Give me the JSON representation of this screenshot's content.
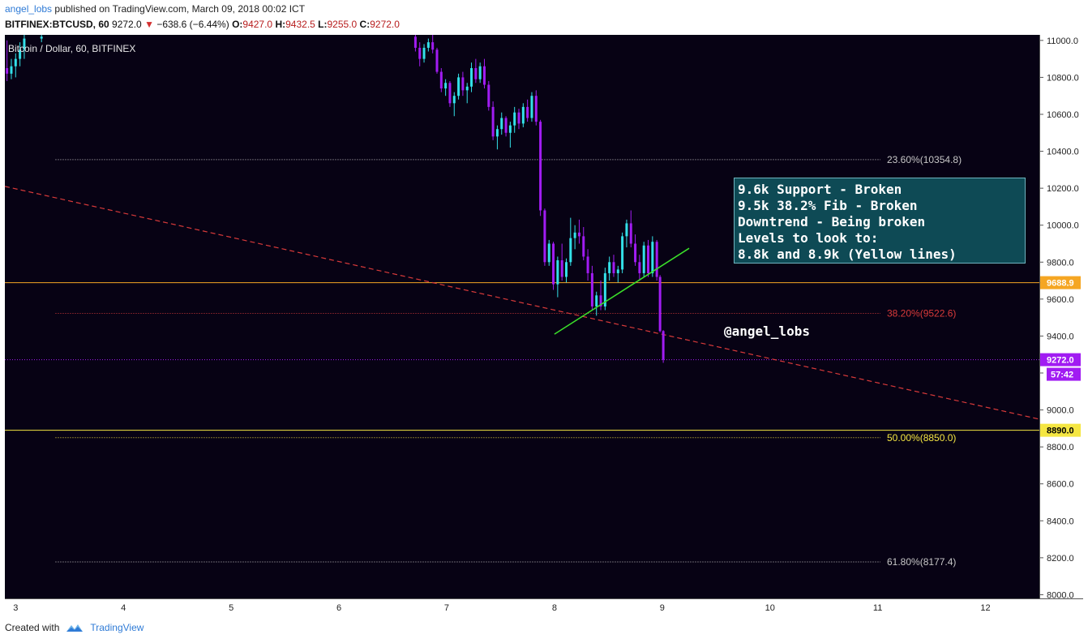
{
  "header": {
    "user": "angel_lobs",
    "published": "published on TradingView.com, March 09, 2018 00:02 ICT",
    "symbol": "BITFINEX:BTCUSD, 60",
    "last": "9272.0",
    "change": "−638.6 (−6.44%)",
    "o_label": "O:",
    "o": "9427.0",
    "h_label": "H:",
    "h": "9432.5",
    "l_label": "L:",
    "l": "9255.0",
    "c_label": "C:",
    "c": "9272.0"
  },
  "series_title": "Bitcoin / Dollar, 60, BITFINEX",
  "annotation": {
    "lines": [
      "9.6k Support - Broken",
      "9.5k 38.2% Fib - Broken",
      "Downtrend - Being broken",
      "Levels to look to:",
      "8.8k and 8.9k (Yellow lines)"
    ],
    "handle": "@angel_lobs"
  },
  "footer": {
    "created_with": "Created with",
    "brand": "TradingView"
  },
  "colors": {
    "background": "#070214",
    "up": "#33e0e8",
    "down": "#a11cf2",
    "orange": "#f5a623",
    "yellow": "#f5e642",
    "trend": "#d93a3a",
    "green": "#3be02a",
    "fib": "#c7c7c7"
  },
  "chart_data": {
    "type": "candlestick",
    "title": "Bitcoin / Dollar, 60, BITFINEX",
    "ylim": [
      7980,
      11030
    ],
    "xlim": [
      2.9,
      12.5
    ],
    "y_ticks": [
      11000,
      10800,
      10600,
      10400,
      10200,
      10000,
      9800,
      9600,
      9400,
      9200,
      9000,
      8800,
      8600,
      8400,
      8200,
      8000
    ],
    "y_tick_labels": [
      "11000.0",
      "10800.0",
      "10600.0",
      "10400.0",
      "10200.0",
      "10000.0",
      "9800.0",
      "9600.0",
      "9400.0",
      "9200.0",
      "9000.0",
      "8800.0",
      "8600.0",
      "8400.0",
      "8200.0",
      "8000.0"
    ],
    "x_ticks": [
      3,
      4,
      5,
      6,
      7,
      8,
      9,
      10,
      11,
      12
    ],
    "x_tick_labels": [
      "3",
      "4",
      "5",
      "6",
      "7",
      "8",
      "9",
      "10",
      "11",
      "12"
    ],
    "fib_levels": [
      {
        "label": "23.60%(10354.8)",
        "value": 10354.8,
        "color": "#c7c7c7"
      },
      {
        "label": "38.20%(9522.6)",
        "value": 9522.6,
        "color": "#d93a3a"
      },
      {
        "label": "50.00%(8850.0)",
        "value": 8850.0,
        "color": "#f5e642"
      },
      {
        "label": "61.80%(8177.4)",
        "value": 8177.4,
        "color": "#c7c7c7"
      }
    ],
    "fib_x_start": 3.37,
    "horizontal_lines": [
      {
        "value": 9688.9,
        "label": "9688.9",
        "color": "#f5a623"
      },
      {
        "value": 8890.0,
        "label": "8890.0",
        "color": "#f5e642"
      },
      {
        "value": 9272.0,
        "label": "9272.0",
        "color": "#a11cf2",
        "dotted": true
      }
    ],
    "countdown": "57:42",
    "trendline_dashed": {
      "x": [
        2.9,
        12.5
      ],
      "y": [
        10210,
        8950
      ],
      "color": "#d93a3a"
    },
    "trendline_green": {
      "x": [
        8.0,
        9.25
      ],
      "y": [
        9410,
        9875
      ],
      "color": "#3be02a"
    },
    "candles": [
      {
        "x": 2.92,
        "o": 10850,
        "h": 11000,
        "l": 10780,
        "c": 10820
      },
      {
        "x": 2.96,
        "o": 10820,
        "h": 10900,
        "l": 10790,
        "c": 10860
      },
      {
        "x": 3.0,
        "o": 10860,
        "h": 10930,
        "l": 10800,
        "c": 10900
      },
      {
        "x": 3.04,
        "o": 10900,
        "h": 10990,
        "l": 10860,
        "c": 10950
      },
      {
        "x": 3.08,
        "o": 10950,
        "h": 11030,
        "l": 10900,
        "c": 11010
      },
      {
        "x": 3.24,
        "o": 11010,
        "h": 11030,
        "l": 10990,
        "c": 11020
      },
      {
        "x": 6.71,
        "o": 11020,
        "h": 11030,
        "l": 10940,
        "c": 10960
      },
      {
        "x": 6.75,
        "o": 10960,
        "h": 10990,
        "l": 10860,
        "c": 10900
      },
      {
        "x": 6.79,
        "o": 10900,
        "h": 10980,
        "l": 10880,
        "c": 10960
      },
      {
        "x": 6.83,
        "o": 10960,
        "h": 11010,
        "l": 10940,
        "c": 10990
      },
      {
        "x": 6.87,
        "o": 10990,
        "h": 11030,
        "l": 10930,
        "c": 10950
      },
      {
        "x": 6.91,
        "o": 10950,
        "h": 10960,
        "l": 10820,
        "c": 10830
      },
      {
        "x": 6.95,
        "o": 10830,
        "h": 10850,
        "l": 10720,
        "c": 10740
      },
      {
        "x": 6.99,
        "o": 10740,
        "h": 10790,
        "l": 10700,
        "c": 10770
      },
      {
        "x": 7.03,
        "o": 10770,
        "h": 10780,
        "l": 10640,
        "c": 10660
      },
      {
        "x": 7.07,
        "o": 10660,
        "h": 10720,
        "l": 10590,
        "c": 10700
      },
      {
        "x": 7.11,
        "o": 10700,
        "h": 10820,
        "l": 10680,
        "c": 10800
      },
      {
        "x": 7.15,
        "o": 10800,
        "h": 10830,
        "l": 10700,
        "c": 10730
      },
      {
        "x": 7.19,
        "o": 10730,
        "h": 10770,
        "l": 10660,
        "c": 10750
      },
      {
        "x": 7.23,
        "o": 10750,
        "h": 10880,
        "l": 10720,
        "c": 10850
      },
      {
        "x": 7.27,
        "o": 10850,
        "h": 10900,
        "l": 10770,
        "c": 10790
      },
      {
        "x": 7.31,
        "o": 10790,
        "h": 10880,
        "l": 10770,
        "c": 10860
      },
      {
        "x": 7.35,
        "o": 10860,
        "h": 10900,
        "l": 10740,
        "c": 10760
      },
      {
        "x": 7.39,
        "o": 10760,
        "h": 10780,
        "l": 10620,
        "c": 10640
      },
      {
        "x": 7.43,
        "o": 10640,
        "h": 10670,
        "l": 10460,
        "c": 10480
      },
      {
        "x": 7.47,
        "o": 10480,
        "h": 10540,
        "l": 10410,
        "c": 10520
      },
      {
        "x": 7.51,
        "o": 10520,
        "h": 10610,
        "l": 10490,
        "c": 10580
      },
      {
        "x": 7.55,
        "o": 10580,
        "h": 10590,
        "l": 10480,
        "c": 10500
      },
      {
        "x": 7.59,
        "o": 10500,
        "h": 10560,
        "l": 10420,
        "c": 10540
      },
      {
        "x": 7.63,
        "o": 10540,
        "h": 10640,
        "l": 10500,
        "c": 10610
      },
      {
        "x": 7.67,
        "o": 10610,
        "h": 10630,
        "l": 10520,
        "c": 10550
      },
      {
        "x": 7.71,
        "o": 10550,
        "h": 10660,
        "l": 10530,
        "c": 10640
      },
      {
        "x": 7.75,
        "o": 10640,
        "h": 10680,
        "l": 10560,
        "c": 10580
      },
      {
        "x": 7.79,
        "o": 10580,
        "h": 10720,
        "l": 10560,
        "c": 10700
      },
      {
        "x": 7.83,
        "o": 10700,
        "h": 10730,
        "l": 10540,
        "c": 10560
      },
      {
        "x": 7.87,
        "o": 10560,
        "h": 10570,
        "l": 10050,
        "c": 10080
      },
      {
        "x": 7.91,
        "o": 10080,
        "h": 10090,
        "l": 9780,
        "c": 9800
      },
      {
        "x": 7.95,
        "o": 9800,
        "h": 9920,
        "l": 9780,
        "c": 9900
      },
      {
        "x": 7.99,
        "o": 9900,
        "h": 9910,
        "l": 9650,
        "c": 9680
      },
      {
        "x": 8.03,
        "o": 9680,
        "h": 9830,
        "l": 9610,
        "c": 9810
      },
      {
        "x": 8.07,
        "o": 9810,
        "h": 9900,
        "l": 9700,
        "c": 9720
      },
      {
        "x": 8.11,
        "o": 9720,
        "h": 9820,
        "l": 9690,
        "c": 9800
      },
      {
        "x": 8.15,
        "o": 9800,
        "h": 10040,
        "l": 9780,
        "c": 9930
      },
      {
        "x": 8.19,
        "o": 9930,
        "h": 10000,
        "l": 9870,
        "c": 9960
      },
      {
        "x": 8.23,
        "o": 9960,
        "h": 10030,
        "l": 9900,
        "c": 9940
      },
      {
        "x": 8.27,
        "o": 9940,
        "h": 9990,
        "l": 9810,
        "c": 9830
      },
      {
        "x": 8.31,
        "o": 9830,
        "h": 9870,
        "l": 9700,
        "c": 9740
      },
      {
        "x": 8.35,
        "o": 9740,
        "h": 9780,
        "l": 9540,
        "c": 9560
      },
      {
        "x": 8.39,
        "o": 9560,
        "h": 9640,
        "l": 9510,
        "c": 9620
      },
      {
        "x": 8.43,
        "o": 9620,
        "h": 9700,
        "l": 9540,
        "c": 9560
      },
      {
        "x": 8.47,
        "o": 9560,
        "h": 9770,
        "l": 9540,
        "c": 9740
      },
      {
        "x": 8.51,
        "o": 9740,
        "h": 9830,
        "l": 9700,
        "c": 9800
      },
      {
        "x": 8.55,
        "o": 9800,
        "h": 9840,
        "l": 9720,
        "c": 9740
      },
      {
        "x": 8.59,
        "o": 9740,
        "h": 9780,
        "l": 9690,
        "c": 9760
      },
      {
        "x": 8.63,
        "o": 9760,
        "h": 9960,
        "l": 9740,
        "c": 9940
      },
      {
        "x": 8.67,
        "o": 9940,
        "h": 10030,
        "l": 9880,
        "c": 10010
      },
      {
        "x": 8.71,
        "o": 10010,
        "h": 10080,
        "l": 9880,
        "c": 9900
      },
      {
        "x": 8.75,
        "o": 9900,
        "h": 9950,
        "l": 9780,
        "c": 9800
      },
      {
        "x": 8.79,
        "o": 9800,
        "h": 9840,
        "l": 9700,
        "c": 9740
      },
      {
        "x": 8.83,
        "o": 9740,
        "h": 9910,
        "l": 9720,
        "c": 9890
      },
      {
        "x": 8.87,
        "o": 9890,
        "h": 9920,
        "l": 9720,
        "c": 9740
      },
      {
        "x": 8.91,
        "o": 9740,
        "h": 9940,
        "l": 9720,
        "c": 9910
      },
      {
        "x": 8.95,
        "o": 9910,
        "h": 9920,
        "l": 9700,
        "c": 9720
      },
      {
        "x": 8.98,
        "o": 9720,
        "h": 9730,
        "l": 9420,
        "c": 9427
      },
      {
        "x": 9.01,
        "o": 9427,
        "h": 9432,
        "l": 9255,
        "c": 9272
      }
    ]
  }
}
